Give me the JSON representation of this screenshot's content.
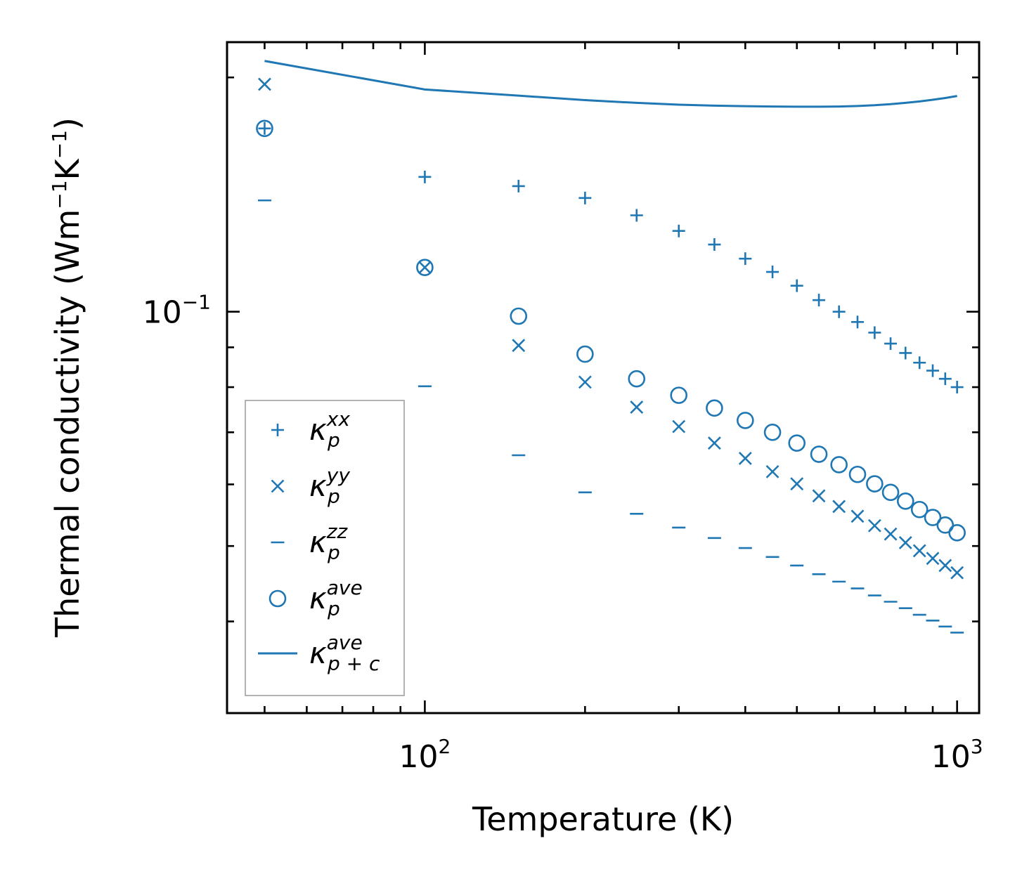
{
  "chart_data": {
    "type": "scatter",
    "scale": {
      "x": "log",
      "y": "log"
    },
    "xlabel": "Temperature (K)",
    "ylabel": {
      "main": "Thermal conductivity (Wm",
      "sup1": "−1",
      "mid": "K",
      "sup2": "−1",
      "end": ")"
    },
    "xlim": [
      42.5,
      1100
    ],
    "ylim": [
      0.0305,
      0.222
    ],
    "x_major_ticks": [
      {
        "value": 100,
        "base": "10",
        "exp": "2"
      },
      {
        "value": 1000,
        "base": "10",
        "exp": "3"
      }
    ],
    "y_major_ticks": [
      {
        "value": 0.1,
        "base": "10",
        "exp": "−1"
      }
    ],
    "x": [
      50,
      100,
      150,
      200,
      250,
      300,
      350,
      400,
      450,
      500,
      550,
      600,
      650,
      700,
      750,
      800,
      850,
      900,
      950,
      1000
    ],
    "series": [
      {
        "name": "kxx",
        "symbol": "κ",
        "sub": "p",
        "sup": "xx",
        "marker": "plus",
        "values": [
          0.172,
          0.149,
          0.145,
          0.14,
          0.133,
          0.127,
          0.122,
          0.117,
          0.1125,
          0.108,
          0.1035,
          0.1,
          0.097,
          0.094,
          0.091,
          0.0885,
          0.086,
          0.084,
          0.082,
          0.08
        ]
      },
      {
        "name": "kyy",
        "symbol": "κ",
        "sub": "p",
        "sup": "yy",
        "marker": "x",
        "values": [
          0.196,
          0.114,
          0.0905,
          0.0812,
          0.0754,
          0.0712,
          0.0678,
          0.0648,
          0.0623,
          0.0601,
          0.058,
          0.0562,
          0.0546,
          0.0531,
          0.0518,
          0.0505,
          0.0493,
          0.0482,
          0.0472,
          0.0462
        ]
      },
      {
        "name": "kzz",
        "symbol": "κ",
        "sub": "p",
        "sup": "zz",
        "marker": "dash",
        "values": [
          0.139,
          0.0802,
          0.0654,
          0.0586,
          0.055,
          0.0528,
          0.0512,
          0.0497,
          0.0484,
          0.0472,
          0.046,
          0.045,
          0.0441,
          0.0432,
          0.0424,
          0.0416,
          0.0408,
          0.0401,
          0.0394,
          0.0387
        ]
      },
      {
        "name": "kave",
        "symbol": "κ",
        "sub": "p",
        "sup": "ave",
        "marker": "circle",
        "values": [
          0.172,
          0.114,
          0.0987,
          0.0882,
          0.082,
          0.0781,
          0.0752,
          0.0725,
          0.07,
          0.0678,
          0.0656,
          0.0636,
          0.0618,
          0.0601,
          0.0586,
          0.0571,
          0.0557,
          0.0544,
          0.0532,
          0.052
        ]
      },
      {
        "name": "kpc",
        "symbol": "κ",
        "sub": "p + c",
        "sup": "ave",
        "marker": "line",
        "x": [
          50,
          100,
          150,
          200,
          250,
          300,
          350,
          400,
          450,
          500,
          550,
          600,
          650,
          700,
          750,
          800,
          850,
          900,
          950,
          1000
        ],
        "values": [
          0.21,
          0.193,
          0.1895,
          0.187,
          0.1855,
          0.1845,
          0.184,
          0.1837,
          0.1835,
          0.1834,
          0.1834,
          0.1835,
          0.1838,
          0.1842,
          0.1848,
          0.1855,
          0.1863,
          0.1872,
          0.1882,
          0.1893
        ]
      }
    ],
    "legend_position": "lower-left",
    "grid": false,
    "color": "#1f77b4"
  }
}
